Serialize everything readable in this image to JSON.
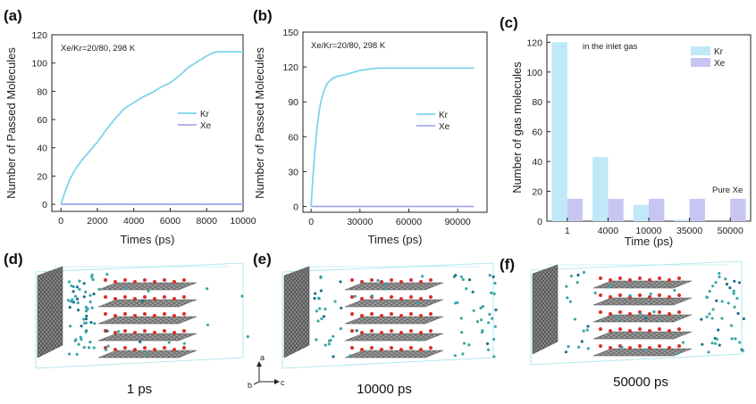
{
  "panels": {
    "a": "(a)",
    "b": "(b)",
    "c": "(c)",
    "d": "(d)",
    "e": "(e)",
    "f": "(f)"
  },
  "captions": {
    "d": "1 ps",
    "e": "10000 ps",
    "f": "50000 ps"
  },
  "axes_triad": {
    "a": "a",
    "b": "b",
    "c": "c"
  },
  "colors": {
    "kr": "#7fd3ee",
    "xe": "#a6a8ee",
    "kr_bar": "#bfe8f8",
    "xe_bar": "#c7c6f3"
  },
  "chart_data": [
    {
      "id": "a",
      "type": "line",
      "annotation": "Xe/Kr=20/80, 298 K",
      "xlabel": "Times (ps)",
      "ylabel": "Number of Passed Molecules",
      "xlim": [
        -500,
        10000
      ],
      "ylim": [
        -5,
        120
      ],
      "xticks": [
        0,
        2000,
        4000,
        6000,
        8000,
        10000
      ],
      "yticks": [
        0,
        20,
        40,
        60,
        80,
        100,
        120
      ],
      "legend_position": "center-right",
      "series": [
        {
          "name": "Kr",
          "x": [
            0,
            200,
            500,
            800,
            1200,
            1600,
            2000,
            2500,
            3000,
            3500,
            4000,
            4500,
            5000,
            5500,
            6000,
            6500,
            7000,
            7500,
            8000,
            8300,
            8600,
            10000
          ],
          "y": [
            0,
            8,
            18,
            25,
            32,
            38,
            44,
            53,
            61,
            68,
            72,
            76,
            79,
            83,
            86,
            91,
            97,
            101,
            105,
            107,
            108,
            108
          ]
        },
        {
          "name": "Xe",
          "x": [
            0,
            10000
          ],
          "y": [
            0,
            0
          ]
        }
      ]
    },
    {
      "id": "b",
      "type": "line",
      "annotation": "Xe/Kr=20/80, 298 K",
      "xlabel": "Times (ps)",
      "ylabel": "Number of Passed Molecules",
      "xlim": [
        -5000,
        108000
      ],
      "ylim": [
        -5,
        150
      ],
      "xticks": [
        0,
        30000,
        60000,
        90000
      ],
      "yticks": [
        0,
        30,
        60,
        90,
        120,
        150
      ],
      "legend_position": "center-right",
      "series": [
        {
          "name": "Kr",
          "x": [
            0,
            1000,
            2000,
            3000,
            4000,
            5000,
            6000,
            8000,
            10000,
            13000,
            16000,
            20000,
            25000,
            30000,
            35000,
            40000,
            50000,
            100000
          ],
          "y": [
            0,
            22,
            42,
            58,
            72,
            82,
            90,
            100,
            106,
            110,
            112,
            113,
            115,
            117,
            118,
            119,
            119,
            119
          ]
        },
        {
          "name": "Xe",
          "x": [
            0,
            100000
          ],
          "y": [
            0,
            0
          ]
        }
      ]
    },
    {
      "id": "c",
      "type": "bar",
      "annotation": "in the inlet gas",
      "annotation2": "Pure Xe",
      "xlabel": "Time (ps)",
      "ylabel": "Number of gas molecules",
      "categories": [
        "1",
        "4000",
        "10000",
        "35000",
        "50000"
      ],
      "ylim": [
        0,
        125
      ],
      "yticks": [
        0,
        20,
        40,
        60,
        80,
        100,
        120
      ],
      "legend_position": "top-right",
      "series": [
        {
          "name": "Kr",
          "values": [
            120,
            43,
            11,
            1,
            0
          ]
        },
        {
          "name": "Xe",
          "values": [
            15,
            15,
            15,
            15,
            15
          ]
        }
      ]
    }
  ]
}
